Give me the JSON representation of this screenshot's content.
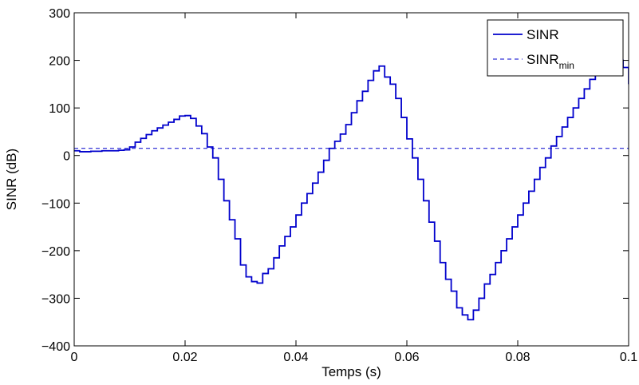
{
  "chart_data": {
    "type": "line",
    "title": "",
    "xlabel": "Temps (s)",
    "ylabel": "SINR (dB)",
    "xlim": [
      0,
      0.1
    ],
    "ylim": [
      -400,
      300
    ],
    "grid": false,
    "legend_position": "top-right",
    "x_ticks": [
      0,
      0.02,
      0.04,
      0.06,
      0.08,
      0.1
    ],
    "x_tick_labels": [
      "0",
      "0.02",
      "0.04",
      "0.06",
      "0.08",
      "0.1"
    ],
    "y_ticks": [
      -400,
      -300,
      -200,
      -100,
      0,
      100,
      200,
      300
    ],
    "y_tick_labels": [
      "−400",
      "−300",
      "−200",
      "−100",
      "0",
      "100",
      "200",
      "300"
    ],
    "series": [
      {
        "name": "SINR",
        "name_base": "SINR",
        "name_sub": "",
        "style": "solid-step",
        "color": "#0000cc",
        "x": [
          0,
          0.001,
          0.002,
          0.003,
          0.004,
          0.005,
          0.006,
          0.007,
          0.008,
          0.009,
          0.01,
          0.011,
          0.012,
          0.013,
          0.014,
          0.015,
          0.016,
          0.017,
          0.018,
          0.019,
          0.02,
          0.021,
          0.022,
          0.023,
          0.024,
          0.025,
          0.026,
          0.027,
          0.028,
          0.029,
          0.03,
          0.031,
          0.032,
          0.033,
          0.034,
          0.035,
          0.036,
          0.037,
          0.038,
          0.039,
          0.04,
          0.041,
          0.042,
          0.043,
          0.044,
          0.045,
          0.046,
          0.047,
          0.048,
          0.049,
          0.05,
          0.051,
          0.052,
          0.053,
          0.054,
          0.055,
          0.056,
          0.057,
          0.058,
          0.059,
          0.06,
          0.061,
          0.062,
          0.063,
          0.064,
          0.065,
          0.066,
          0.067,
          0.068,
          0.069,
          0.07,
          0.071,
          0.072,
          0.073,
          0.074,
          0.075,
          0.076,
          0.077,
          0.078,
          0.079,
          0.08,
          0.081,
          0.082,
          0.083,
          0.084,
          0.085,
          0.086,
          0.087,
          0.088,
          0.089,
          0.09,
          0.091,
          0.092,
          0.093,
          0.094,
          0.095,
          0.096,
          0.097,
          0.098,
          0.099,
          0.1
        ],
        "values": [
          10,
          8,
          8,
          9,
          9,
          10,
          10,
          10,
          11,
          12,
          18,
          28,
          36,
          44,
          52,
          58,
          64,
          70,
          76,
          83,
          84,
          78,
          62,
          46,
          18,
          -5,
          -50,
          -95,
          -135,
          -175,
          -230,
          -255,
          -265,
          -268,
          -248,
          -238,
          -215,
          -190,
          -170,
          -150,
          -125,
          -100,
          -80,
          -58,
          -35,
          -10,
          15,
          30,
          45,
          65,
          90,
          115,
          135,
          158,
          178,
          188,
          165,
          150,
          120,
          80,
          35,
          -5,
          -50,
          -95,
          -140,
          -180,
          -225,
          -260,
          -285,
          -320,
          -335,
          -345,
          -325,
          -300,
          -270,
          -250,
          -225,
          -200,
          -175,
          -150,
          -125,
          -100,
          -75,
          -50,
          -25,
          -5,
          20,
          40,
          60,
          80,
          100,
          120,
          140,
          160,
          180,
          185,
          190,
          210,
          200,
          185,
          150
        ]
      },
      {
        "name": "SINR_min",
        "name_base": "SINR",
        "name_sub": "min",
        "style": "dashed",
        "color": "#0000cc",
        "x": [
          0,
          0.1
        ],
        "values": [
          15,
          15
        ]
      }
    ]
  }
}
